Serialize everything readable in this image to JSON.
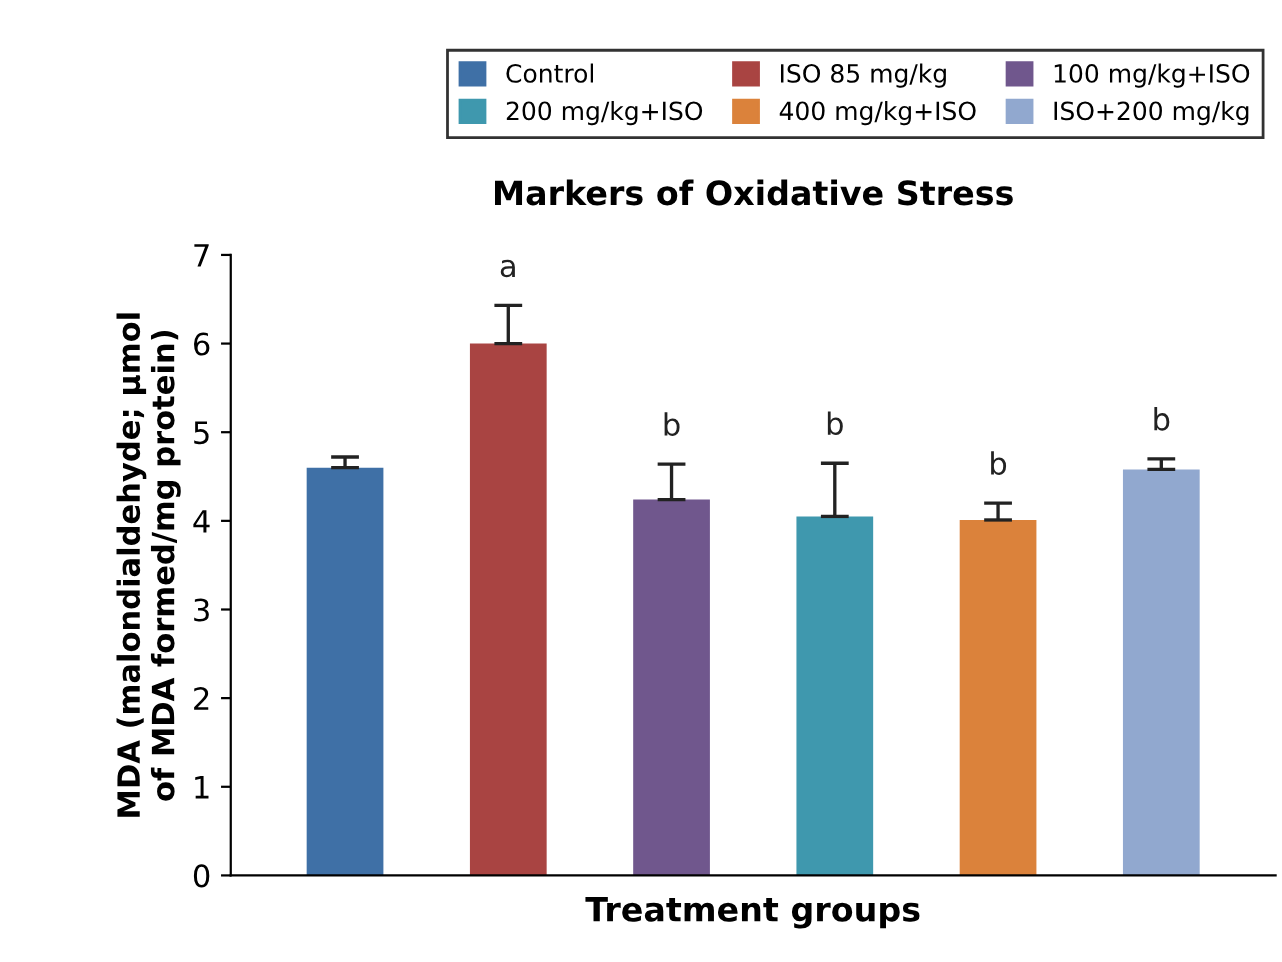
{
  "chart_data": {
    "type": "bar",
    "title": "Markers of Oxidative Stress",
    "xlabel": "Treatment groups",
    "ylabel": "MDA (malondialdehyde; µmol\nof MDA formed/mg protein)",
    "categories": [
      null,
      null,
      null,
      null,
      null,
      null
    ],
    "series": [
      {
        "name": "Control",
        "color": "#3f70a6",
        "values": [
          4.6,
          null,
          null,
          null,
          null,
          null
        ],
        "errors": [
          0.12,
          null,
          null,
          null,
          null,
          null
        ]
      },
      {
        "name": "ISO 85 mg/kg",
        "color": "#a94442",
        "values": [
          null,
          6.0,
          null,
          null,
          null,
          null
        ],
        "errors": [
          null,
          0.43,
          null,
          null,
          null,
          null
        ],
        "value_labels": [
          null,
          "a",
          null,
          null,
          null,
          null
        ]
      },
      {
        "name": "100 mg/kg+ISO",
        "color": "#70578d",
        "values": [
          null,
          null,
          4.24,
          null,
          null,
          null
        ],
        "errors": [
          null,
          null,
          0.4,
          null,
          null,
          null
        ],
        "value_labels": [
          null,
          null,
          "b",
          null,
          null,
          null
        ]
      },
      {
        "name": "200 mg/kg+ISO",
        "color": "#3f98ae",
        "values": [
          null,
          null,
          null,
          4.05,
          null,
          null
        ],
        "errors": [
          null,
          null,
          null,
          0.6,
          null,
          null
        ],
        "value_labels": [
          null,
          null,
          null,
          "b",
          null,
          null
        ]
      },
      {
        "name": "400 mg/kg+ISO",
        "color": "#db823b",
        "values": [
          null,
          null,
          null,
          null,
          4.01,
          null
        ],
        "errors": [
          null,
          null,
          null,
          null,
          0.19,
          null
        ],
        "value_labels": [
          null,
          null,
          null,
          null,
          "b",
          null
        ]
      },
      {
        "name": "ISO+200 mg/kg",
        "color": "#91a8cf",
        "values": [
          null,
          null,
          null,
          null,
          null,
          4.58
        ],
        "errors": [
          null,
          null,
          null,
          null,
          null,
          0.12
        ],
        "value_labels": [
          null,
          null,
          null,
          null,
          null,
          "b"
        ]
      }
    ],
    "ylim": [
      0,
      7
    ],
    "yticks": [
      0,
      1,
      2,
      3,
      4,
      5,
      6,
      7
    ],
    "grid": false,
    "legend": "top"
  }
}
